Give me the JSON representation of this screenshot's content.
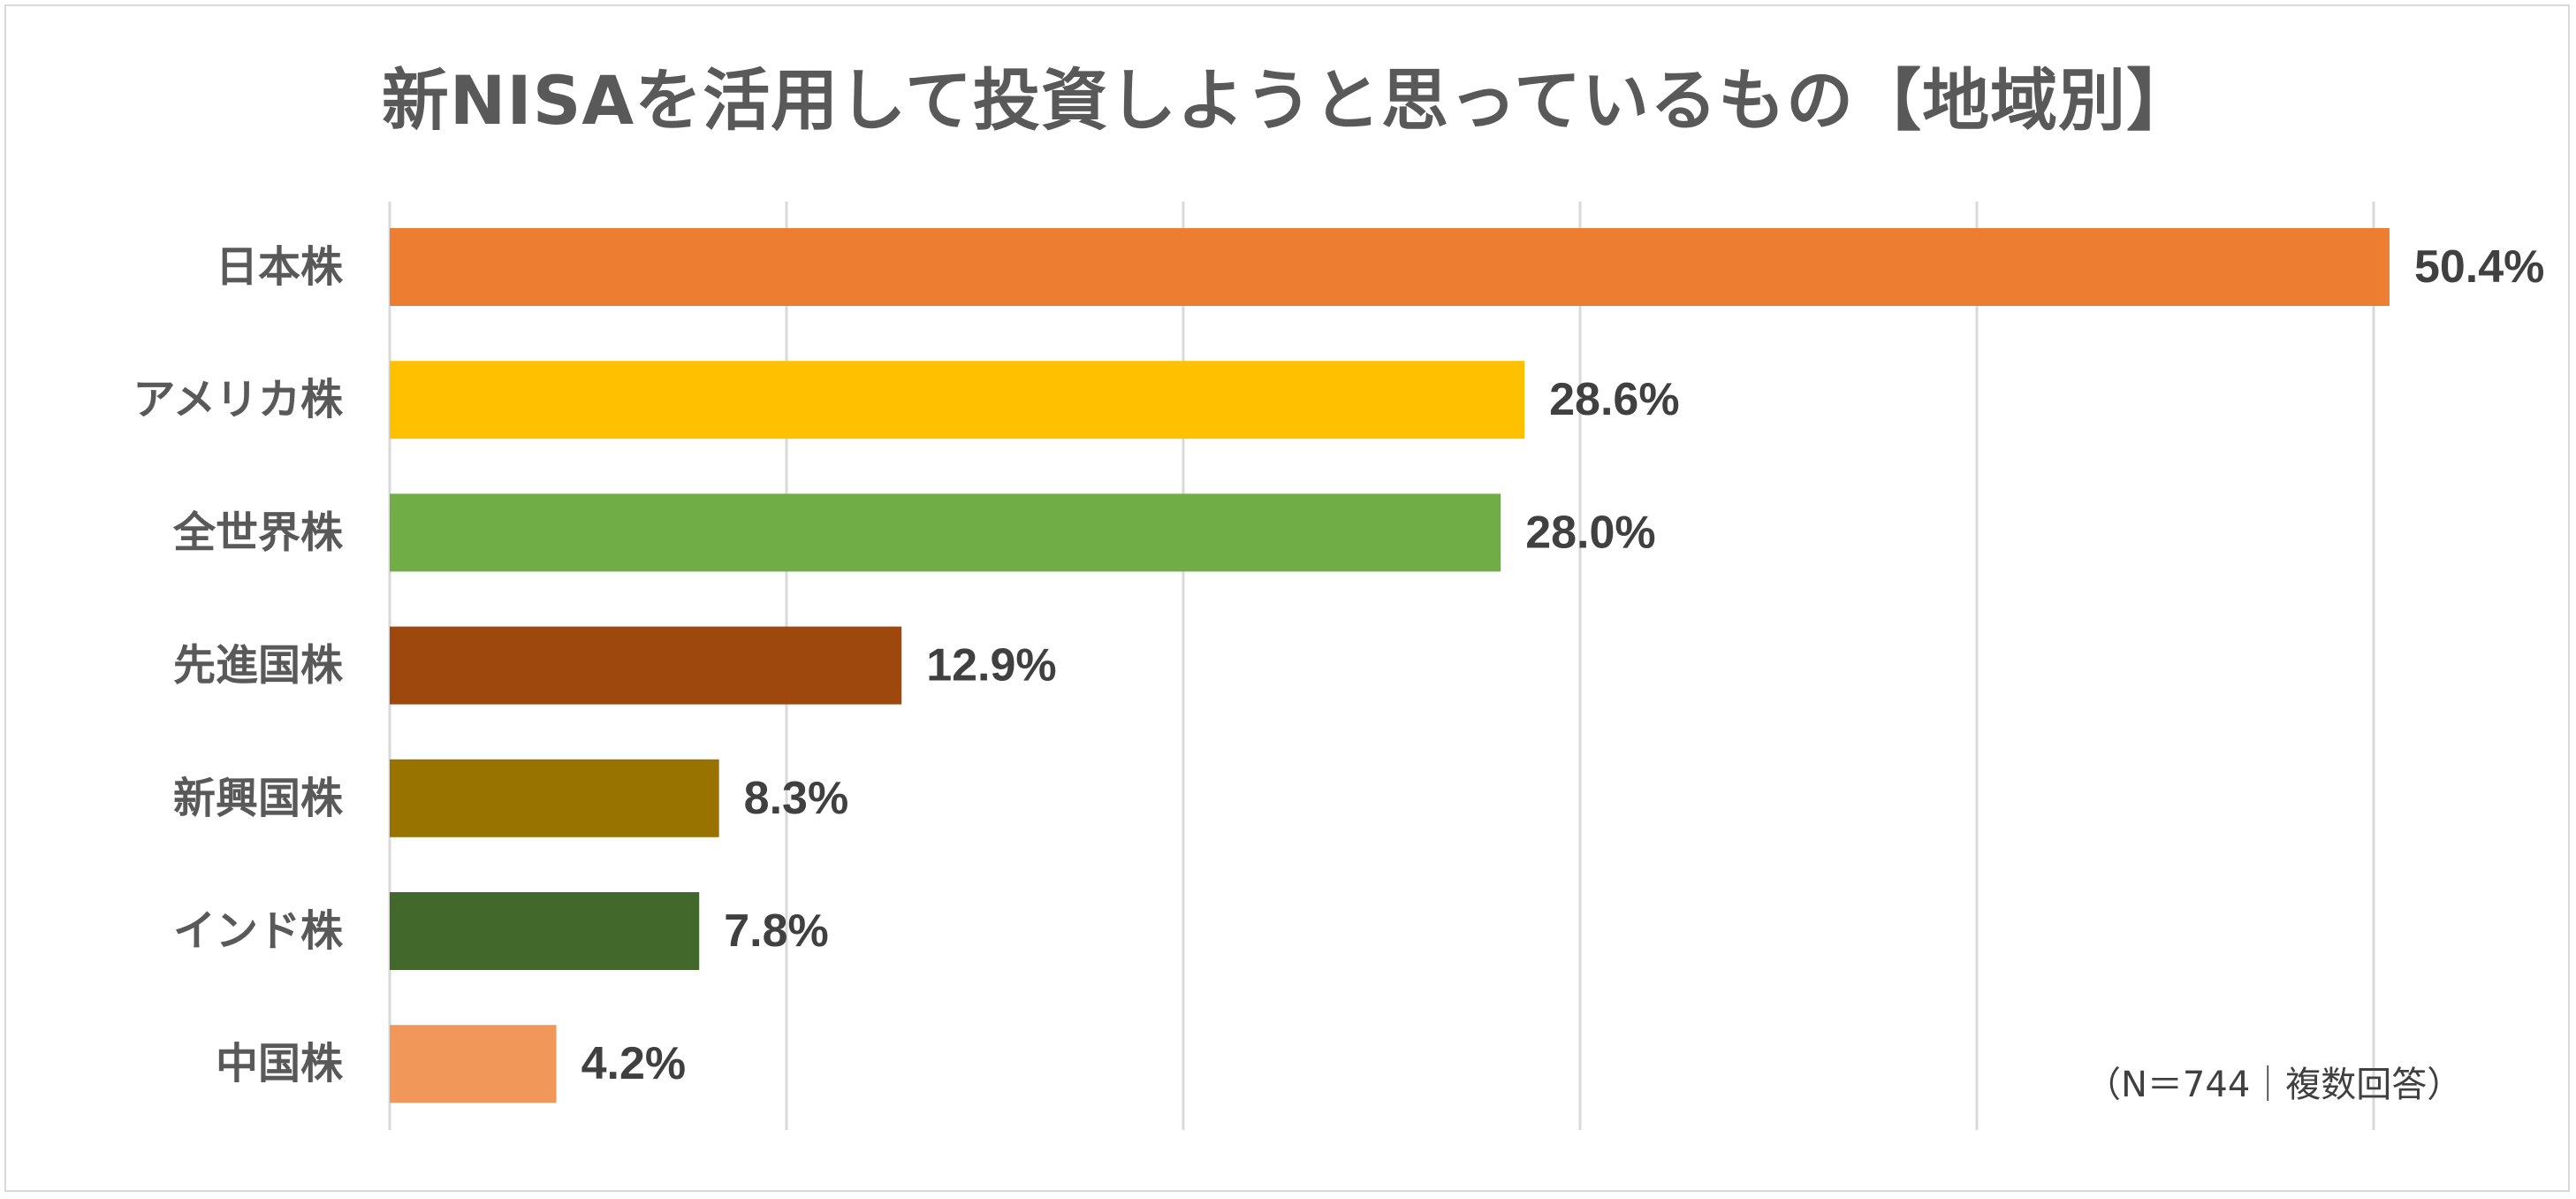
{
  "chart_data": {
    "type": "bar",
    "orientation": "horizontal",
    "title": "新NISAを活用して投資しようと思っているもの【地域別】",
    "categories": [
      "日本株",
      "アメリカ株",
      "全世界株",
      "先進国株",
      "新興国株",
      "インド株",
      "中国株"
    ],
    "values": [
      50.4,
      28.6,
      28.0,
      12.9,
      8.3,
      7.8,
      4.2
    ],
    "value_labels": [
      "50.4%",
      "28.6%",
      "28.0%",
      "12.9%",
      "8.3%",
      "7.8%",
      "4.2%"
    ],
    "colors": [
      "#ed7d31",
      "#ffc000",
      "#70ad47",
      "#9e480e",
      "#997300",
      "#43682b",
      "#f1975a"
    ],
    "xlim": [
      0,
      50
    ],
    "x_gridlines": [
      0,
      10,
      20,
      30,
      40,
      50
    ],
    "grid": true,
    "legend": false,
    "note": "（N＝744｜複数回答）"
  }
}
